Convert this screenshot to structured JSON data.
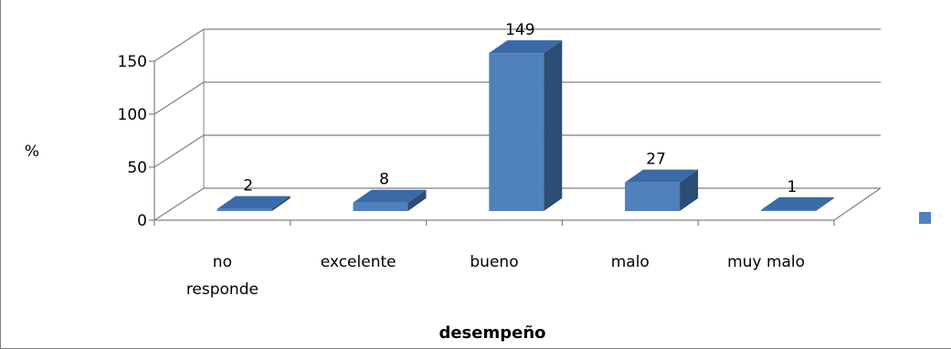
{
  "chart_data": {
    "type": "bar",
    "style": "3d-column",
    "categories": [
      "no responde",
      "excelente",
      "bueno",
      "malo",
      "muy malo"
    ],
    "series": [
      {
        "values": [
          2,
          8,
          149,
          27,
          1
        ]
      }
    ],
    "data_labels": [
      "2",
      "8",
      "149",
      "27",
      "1"
    ],
    "title": "",
    "xlabel": "desempeño",
    "ylabel": "%",
    "ylim": [
      0,
      150
    ],
    "yticks": [
      0,
      50,
      100,
      150
    ],
    "ytick_labels": [
      "0",
      "50",
      "100",
      "150"
    ],
    "grid": true,
    "legend": "right",
    "colors": {
      "bar_front": "#4f81bd",
      "bar_top": "#3a6aa8",
      "bar_side": "#2c4d75",
      "grid": "#7f7f7f"
    }
  }
}
